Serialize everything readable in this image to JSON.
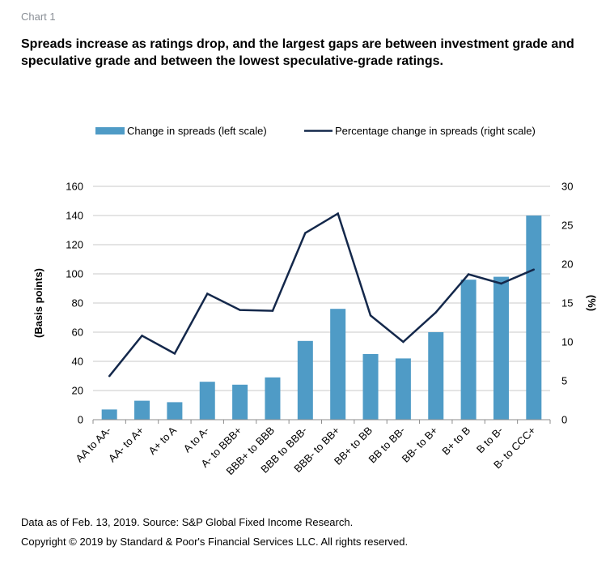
{
  "header": {
    "label": "Chart 1",
    "title": "Spreads increase as ratings drop, and the largest gaps are between investment grade and speculative grade and between the lowest speculative-grade ratings."
  },
  "chart_data": {
    "type": "bar+line",
    "categories": [
      "AA to AA-",
      "AA- to A+",
      "A+ to A",
      "A to A-",
      "A- to BBB+",
      "BBB+ to BBB",
      "BBB to BBB-",
      "BBB- to BB+",
      "BB+ to BB",
      "BB to BB-",
      "BB- to B+",
      "B+ to B",
      "B to B-",
      "B- to CCC+"
    ],
    "series": [
      {
        "name": "Change in spreads (left scale)",
        "type": "bar",
        "axis": "left",
        "color": "#4f9bc6",
        "values": [
          7,
          13,
          12,
          26,
          24,
          29,
          54,
          76,
          45,
          42,
          60,
          96,
          98,
          140
        ]
      },
      {
        "name": "Percentage change in spreads (right scale)",
        "type": "line",
        "axis": "right",
        "color": "#14284b",
        "values": [
          5.6,
          10.8,
          8.5,
          16.2,
          14.1,
          14.0,
          24.0,
          26.5,
          13.4,
          10.0,
          13.8,
          18.7,
          17.5,
          19.3
        ]
      }
    ],
    "ylabel_left": "(Basis points)",
    "ylabel_right": "(%)",
    "ylim_left": [
      0,
      160
    ],
    "yticks_left": [
      0,
      20,
      40,
      60,
      80,
      100,
      120,
      140,
      160
    ],
    "ylim_right": [
      0,
      30
    ],
    "yticks_right": [
      0,
      5,
      10,
      15,
      20,
      25,
      30
    ],
    "grid": true,
    "legend_position": "top"
  },
  "footer": {
    "source": "Data as of Feb. 13, 2019. Source: S&P Global Fixed Income Research.",
    "copyright": "Copyright © 2019 by Standard & Poor's Financial Services LLC. All rights reserved."
  }
}
